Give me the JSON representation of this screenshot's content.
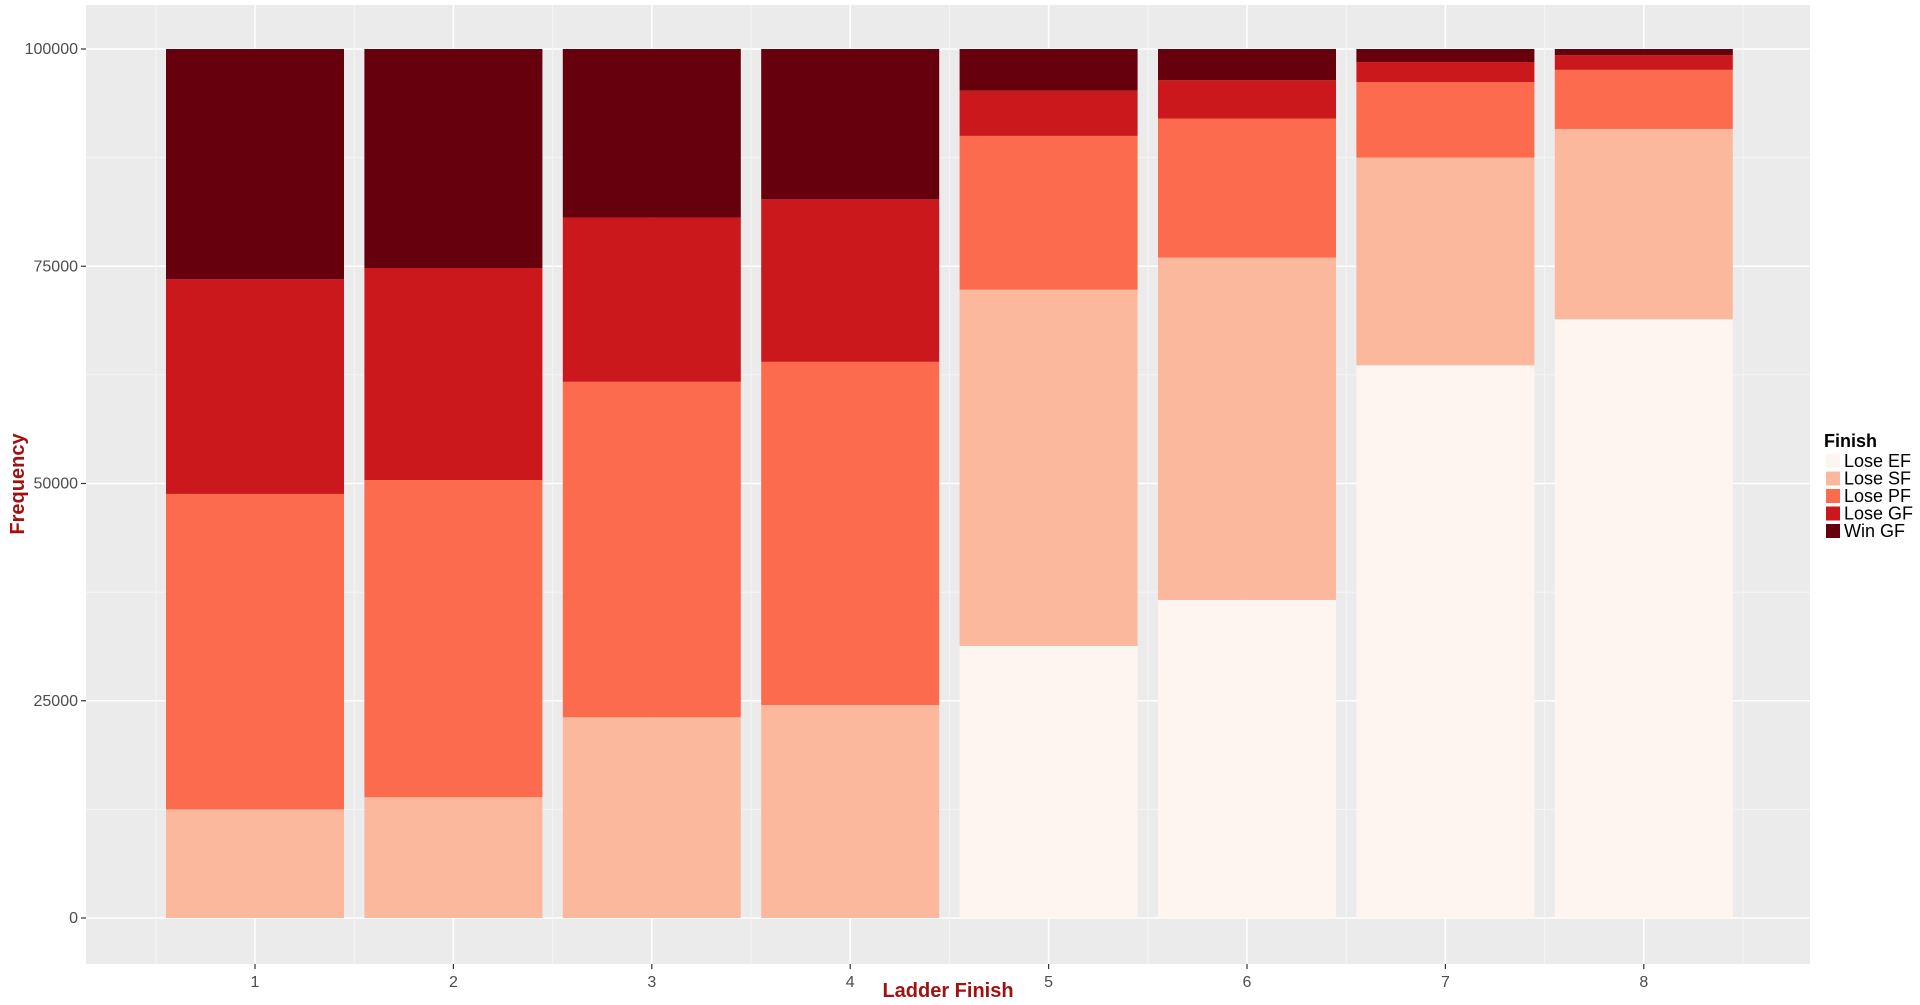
{
  "chart_data": {
    "type": "bar",
    "stacked": true,
    "title": "",
    "xlabel": "Ladder Finish",
    "ylabel": "Frequency",
    "categories": [
      "1",
      "2",
      "3",
      "4",
      "5",
      "6",
      "7",
      "8"
    ],
    "ylim": [
      0,
      100000
    ],
    "yticks": [
      0,
      25000,
      50000,
      75000,
      100000
    ],
    "ytick_labels": [
      "0",
      "25000",
      "50000",
      "75000",
      "100000"
    ],
    "grid": true,
    "legend": {
      "title": "Finish",
      "position": "right"
    },
    "series": [
      {
        "name": "Lose EF",
        "color": "#fff5f0",
        "values": [
          0,
          0,
          0,
          0,
          31300,
          36600,
          63600,
          68900
        ]
      },
      {
        "name": "Lose SF",
        "color": "#fcb89d",
        "values": [
          12500,
          13900,
          23100,
          24500,
          41000,
          39400,
          23900,
          21900
        ]
      },
      {
        "name": "Lose PF",
        "color": "#fc6b4d",
        "values": [
          36300,
          36500,
          38600,
          39500,
          17700,
          16000,
          8700,
          6800
        ]
      },
      {
        "name": "Lose GF",
        "color": "#cb181d",
        "values": [
          24700,
          24400,
          18900,
          18700,
          5200,
          4400,
          2300,
          1700
        ]
      },
      {
        "name": "Win GF",
        "color": "#67000d",
        "values": [
          26500,
          25200,
          19400,
          17300,
          4800,
          3600,
          1500,
          700
        ]
      }
    ]
  }
}
